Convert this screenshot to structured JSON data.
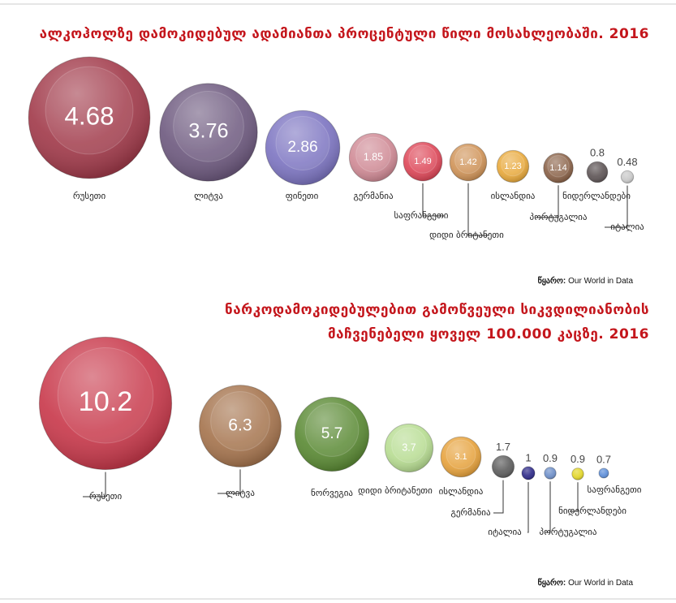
{
  "chart_data": [
    {
      "type": "bubble",
      "title": [
        "ალკოჰოლზე დამოკიდებულ ადამიანთა პროცენტული წილი მოსახლეობაში. 2016"
      ],
      "categories": [
        "რუსეთი",
        "ლიტვა",
        "ფინეთი",
        "გერმანია",
        "საფრანგეთი",
        "დიდი ბრიტანეთი",
        "ისლანდია",
        "პორტუგალია",
        "ნიდერლანდები",
        "იტალია"
      ],
      "values": [
        4.68,
        3.76,
        2.86,
        1.85,
        1.49,
        1.42,
        1.23,
        1.14,
        0.8,
        0.48
      ],
      "colors": [
        "#a23c4c",
        "#6f5b80",
        "#7e76c2",
        "#d08b96",
        "#de4859",
        "#d09459",
        "#e9aa3d",
        "#8b6349",
        "#5f5657",
        "#c9c9c9"
      ],
      "source_label": "წყარო:",
      "source": "Our World in Data"
    },
    {
      "type": "bubble",
      "title": [
        "ნარკოდამოკიდებულებით გამოწვეული სიკვდილიანობის",
        "მაჩვენებელი ყოველ 100.000 კაცზე. 2016"
      ],
      "categories": [
        "რუსეთი",
        "ლიტვა",
        "ნორვეგია",
        "დიდი ბრიტანეთი",
        "ისლანდია",
        "გერმანია",
        "იტალია",
        "პორტუგალია",
        "ნიდერლანდები",
        "საფრანგეთი"
      ],
      "values": [
        10.2,
        6.3,
        5.7,
        3.7,
        3.1,
        1.7,
        1,
        0.9,
        0.9,
        0.7
      ],
      "colors": [
        "#c93b4d",
        "#a6754f",
        "#5c8b36",
        "#b8dd93",
        "#e7a33e",
        "#5f5f5f",
        "#2f2b89",
        "#6f90c9",
        "#e3d72b",
        "#5e8fd9"
      ],
      "source_label": "წყარო:",
      "source": "Our World in Data"
    }
  ]
}
